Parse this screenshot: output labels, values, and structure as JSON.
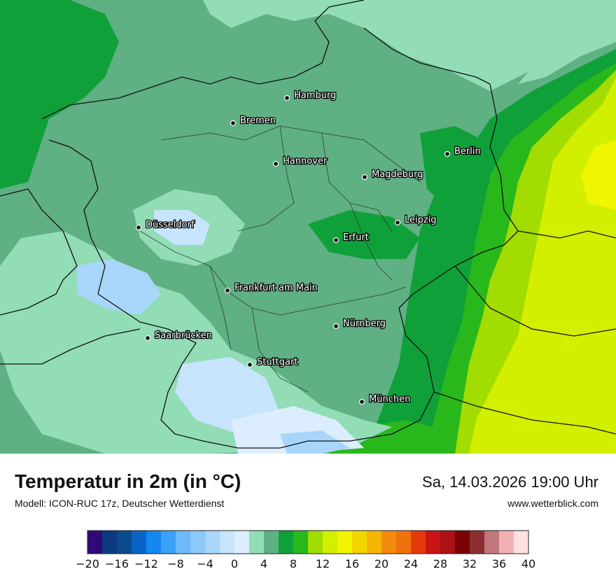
{
  "header": {
    "title": "Temperatur in 2m (in °C)",
    "model": "Modell: ICON-RUC 17z, Deutscher Wetterdienst",
    "datetime": "Sa, 14.03.2026 19:00 Uhr",
    "website": "www.wetterblick.com"
  },
  "cities": [
    {
      "name": "Hamburg"
    },
    {
      "name": "Bremen"
    },
    {
      "name": "Hannover"
    },
    {
      "name": "Berlin"
    },
    {
      "name": "Magdeburg"
    },
    {
      "name": "Düsseldorf"
    },
    {
      "name": "Leipzig"
    },
    {
      "name": "Erfurt"
    },
    {
      "name": "Frankfurt am Main"
    },
    {
      "name": "Nürnberg"
    },
    {
      "name": "Saarbrücken"
    },
    {
      "name": "Stuttgart"
    },
    {
      "name": "München"
    }
  ],
  "legend": {
    "labels": [
      "−20",
      "−16",
      "−12",
      "−8",
      "−4",
      "0",
      "4",
      "8",
      "12",
      "16",
      "20",
      "24",
      "28",
      "32",
      "36",
      "40"
    ],
    "colors": [
      "#2e0a78",
      "#0b3a7e",
      "#0b4a8e",
      "#0a64c6",
      "#1287f0",
      "#3aa0f8",
      "#6cbaf8",
      "#8cc8fa",
      "#a8d6fb",
      "#c6e4fc",
      "#dceefe",
      "#92dcb6",
      "#5fb083",
      "#10a03a",
      "#29b81b",
      "#a2dc00",
      "#d3ef00",
      "#f0f500",
      "#f3d600",
      "#f4b600",
      "#f48a0e",
      "#f0720d",
      "#e63a0c",
      "#c81414",
      "#aa1215",
      "#7a0204",
      "#8c2e32",
      "#c0767a",
      "#f3b0b2",
      "#fde1e1"
    ]
  },
  "temperature_colors": {
    "sea": "#92dcb6",
    "cool": "#5fb083",
    "mild": "#10a03a",
    "warm": "#29b81b",
    "warmer": "#a2dc00",
    "warmest": "#d3ef00",
    "cold_spots": "#a8d6fb",
    "coldest_spots": "#dceefe"
  }
}
